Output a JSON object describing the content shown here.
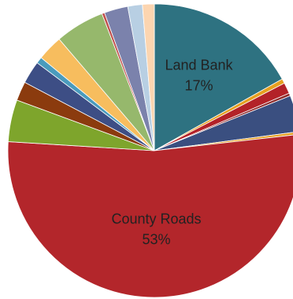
{
  "chart_data": {
    "type": "pie",
    "title": "",
    "start_angle_deg": 0,
    "direction": "clockwise",
    "legend": "none",
    "slices": [
      {
        "label": "Land Bank",
        "value": 16.8,
        "value_label": "17%",
        "color": "#2e7281"
      },
      {
        "value": 0.5,
        "color": "#e6a020"
      },
      {
        "value": 1.2,
        "color": "#b32228"
      },
      {
        "value": 0.3,
        "color": "#8e2a2a"
      },
      {
        "value": 4.0,
        "color": "#3a4f80"
      },
      {
        "value": 0.3,
        "color": "#e6a020"
      },
      {
        "label": "County Roads",
        "value": 52.5,
        "value_label": "53%",
        "color": "#b3262b"
      },
      {
        "value": 4.6,
        "color": "#7ea52c"
      },
      {
        "value": 2.1,
        "color": "#8b3b0e"
      },
      {
        "value": 2.5,
        "color": "#3d4e85"
      },
      {
        "value": 0.7,
        "color": "#4a9bbd"
      },
      {
        "value": 2.8,
        "color": "#f7bd5e"
      },
      {
        "value": 5.4,
        "color": "#96b86c"
      },
      {
        "value": 0.3,
        "color": "#c0504d"
      },
      {
        "value": 2.6,
        "color": "#7b82ac"
      },
      {
        "value": 1.6,
        "color": "#b8cfe3"
      },
      {
        "value": 1.3,
        "color": "#fcd5b0"
      }
    ]
  }
}
